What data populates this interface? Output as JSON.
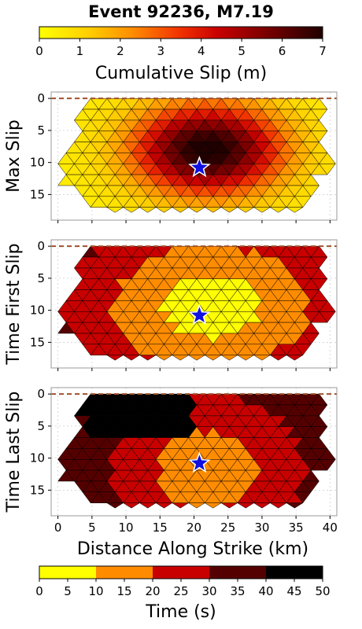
{
  "title": "Event 92236, M7.19",
  "colors": {
    "tri_stroke": "#000000",
    "surface_line": "#a0522d",
    "hypocenter_fill": "#1010e0",
    "grid": "#cccccc",
    "frame": "#000000"
  },
  "chart_data": [
    {
      "type": "colorbar",
      "name": "slip-colorbar",
      "label": "Cumulative Slip (m)",
      "range": [
        0,
        7
      ],
      "ticks": [
        "0",
        "1",
        "2",
        "3",
        "4",
        "5",
        "6",
        "7"
      ],
      "colormap": "hot_r",
      "continuous": true
    },
    {
      "type": "heatmap",
      "name": "max-slip",
      "ylabel": "Max Slip",
      "field": "slip",
      "grid": true
    },
    {
      "type": "heatmap",
      "name": "time-first-slip",
      "ylabel": "Time First Slip",
      "field": "t_first",
      "grid": true
    },
    {
      "type": "heatmap",
      "name": "time-last-slip",
      "ylabel": "Time Last Slip",
      "field": "t_last",
      "grid": true,
      "xlabel": "Distance Along Strike (km)"
    },
    {
      "type": "colorbar",
      "name": "time-colorbar",
      "label": "Time (s)",
      "range": [
        0,
        50
      ],
      "ticks": [
        "0",
        "5",
        "10",
        "15",
        "20",
        "25",
        "30",
        "35",
        "40",
        "45",
        "50"
      ],
      "bins": [
        {
          "from": 0,
          "to": 10,
          "color": "#ffff00"
        },
        {
          "from": 10,
          "to": 20,
          "color": "#ff8c00"
        },
        {
          "from": 20,
          "to": 30,
          "color": "#c80000"
        },
        {
          "from": 30,
          "to": 40,
          "color": "#550000"
        },
        {
          "from": 40,
          "to": 50,
          "color": "#000000"
        }
      ]
    }
  ],
  "axes": {
    "xlim": [
      -1,
      41
    ],
    "ylim": [
      19,
      -1
    ],
    "xticks": [
      "0",
      "5",
      "10",
      "15",
      "20",
      "25",
      "30",
      "35",
      "40"
    ],
    "yticks": [
      "0",
      "5",
      "10",
      "15"
    ]
  },
  "fault": {
    "rupture_top_depth": 0,
    "hypocenter": {
      "x": 20.8,
      "y": 10.8
    },
    "mesh_dx": 2.4,
    "mesh_dy": 1.7,
    "outline": [
      [
        4.2,
        0
      ],
      [
        38.5,
        0
      ],
      [
        38.6,
        7.5
      ],
      [
        40.3,
        10.8
      ],
      [
        38.3,
        12.2
      ],
      [
        37.8,
        15.5
      ],
      [
        35.5,
        17.8
      ],
      [
        6.2,
        17.8
      ],
      [
        4.5,
        15.5
      ],
      [
        1.2,
        13.8
      ],
      [
        0.6,
        10.5
      ],
      [
        1.5,
        8
      ],
      [
        2.8,
        5.5
      ],
      [
        3.6,
        2.8
      ]
    ],
    "slip_peak": {
      "x": 22,
      "y": 8,
      "value": 6.8,
      "sx": 11,
      "sy": 7
    },
    "t_first_center": {
      "x": 22.5,
      "y": 9.5
    },
    "t_first_rate": 1.4,
    "t_last_center": {
      "x": 22,
      "y": 12
    },
    "t_last_base": 10,
    "t_last_nw_zone": {
      "x_max": 20,
      "y_max": 7,
      "value": 45
    }
  }
}
